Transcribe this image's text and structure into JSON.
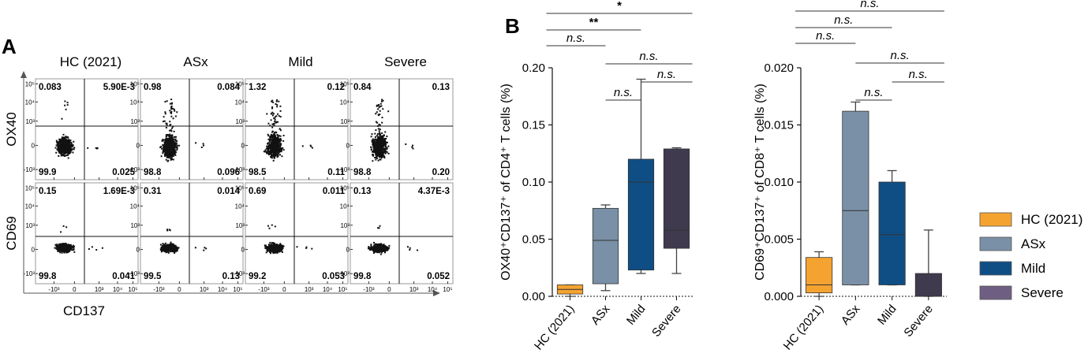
{
  "panel_a": {
    "letter": "A",
    "columns": [
      "HC (2021)",
      "ASx",
      "Mild",
      "Severe"
    ],
    "row_labels": [
      "OX40",
      "CD69"
    ],
    "x_axis_label": "CD137",
    "y_ticks": [
      "10⁵",
      "10⁴",
      "10³",
      "0",
      "-10³"
    ],
    "x_ticks": [
      "-10³",
      "0",
      "10³",
      "10⁴",
      "10⁵"
    ],
    "quadrants": [
      [
        {
          "ul": "0.083",
          "ur": "5.90E-3",
          "ll": "99.9",
          "lr": "0.025"
        },
        {
          "ul": "0.98",
          "ur": "0.084",
          "ll": "98.8",
          "lr": "0.096"
        },
        {
          "ul": "1.32",
          "ur": "0.12",
          "ll": "98.5",
          "lr": "0.11"
        },
        {
          "ul": "0.84",
          "ur": "0.13",
          "ll": "98.8",
          "lr": "0.20"
        }
      ],
      [
        {
          "ul": "0.15",
          "ur": "1.69E-3",
          "ll": "99.8",
          "lr": "0.041"
        },
        {
          "ul": "0.31",
          "ur": "0.014",
          "ll": "99.5",
          "lr": "0.13"
        },
        {
          "ul": "0.69",
          "ur": "0.011",
          "ll": "99.2",
          "lr": "0.053"
        },
        {
          "ul": "0.13",
          "ur": "4.37E-3",
          "ll": "99.8",
          "lr": "0.052"
        }
      ]
    ]
  },
  "panel_b": {
    "letter": "B"
  },
  "chart_data": [
    {
      "type": "box",
      "id": "cd4",
      "ylabel": "OX40⁺CD137⁺ of CD4⁺ T cells (%)",
      "ylim": [
        0,
        0.2
      ],
      "yticks": [
        "0.00",
        "0.05",
        "0.10",
        "0.15",
        "0.20"
      ],
      "ytick_values": [
        0,
        0.05,
        0.1,
        0.15,
        0.2
      ],
      "categories": [
        "HC (2021)",
        "ASx",
        "Mild",
        "Severe"
      ],
      "boxes": [
        {
          "min": 0.0,
          "q1": 0.002,
          "median": 0.006,
          "q3": 0.01,
          "max": 0.01
        },
        {
          "min": 0.005,
          "q1": 0.011,
          "median": 0.049,
          "q3": 0.077,
          "max": 0.08
        },
        {
          "min": 0.02,
          "q1": 0.023,
          "median": 0.1,
          "q3": 0.12,
          "max": 0.19
        },
        {
          "min": 0.02,
          "q1": 0.042,
          "median": 0.058,
          "q3": 0.129,
          "max": 0.13
        }
      ],
      "comparisons": [
        {
          "from": 0,
          "to": 3,
          "label": "*"
        },
        {
          "from": 0,
          "to": 2,
          "label": "**"
        },
        {
          "from": 0,
          "to": 1,
          "label": "n.s."
        },
        {
          "from": 1,
          "to": 3,
          "label": "n.s."
        },
        {
          "from": 2,
          "to": 3,
          "label": "n.s."
        },
        {
          "from": 1,
          "to": 2,
          "label": "n.s."
        }
      ]
    },
    {
      "type": "box",
      "id": "cd8",
      "ylabel": "CD69⁺CD137⁺ of CD8⁺ T cells (%)",
      "ylim": [
        0,
        0.02
      ],
      "yticks": [
        "0.000",
        "0.005",
        "0.010",
        "0.015",
        "0.020"
      ],
      "ytick_values": [
        0,
        0.005,
        0.01,
        0.015,
        0.02
      ],
      "categories": [
        "HC (2021)",
        "ASx",
        "Mild",
        "Severe"
      ],
      "boxes": [
        {
          "min": 0.0,
          "q1": 0.0003,
          "median": 0.001,
          "q3": 0.0034,
          "max": 0.0039
        },
        {
          "min": 0.001,
          "q1": 0.001,
          "median": 0.0075,
          "q3": 0.0162,
          "max": 0.017
        },
        {
          "min": 0.001,
          "q1": 0.001,
          "median": 0.0054,
          "q3": 0.01,
          "max": 0.011
        },
        {
          "min": 0.0,
          "q1": 0.0,
          "median": 0.0,
          "q3": 0.002,
          "max": 0.0058
        }
      ],
      "comparisons": [
        {
          "from": 0,
          "to": 3,
          "label": "n.s."
        },
        {
          "from": 0,
          "to": 2,
          "label": "n.s."
        },
        {
          "from": 0,
          "to": 1,
          "label": "n.s."
        },
        {
          "from": 1,
          "to": 3,
          "label": "n.s."
        },
        {
          "from": 2,
          "to": 3,
          "label": "n.s."
        },
        {
          "from": 1,
          "to": 2,
          "label": "n.s."
        }
      ]
    }
  ],
  "legend": [
    {
      "label": "HC (2021)",
      "color": "#f5a330"
    },
    {
      "label": "ASx",
      "color": "#7a90a6"
    },
    {
      "label": "Mild",
      "color": "#0f4e85"
    },
    {
      "label": "Severe",
      "color": "#6e5f82"
    }
  ],
  "box_colors": [
    "#f5a330",
    "#7a90a6",
    "#0f4e85",
    "#3f3a4d"
  ]
}
